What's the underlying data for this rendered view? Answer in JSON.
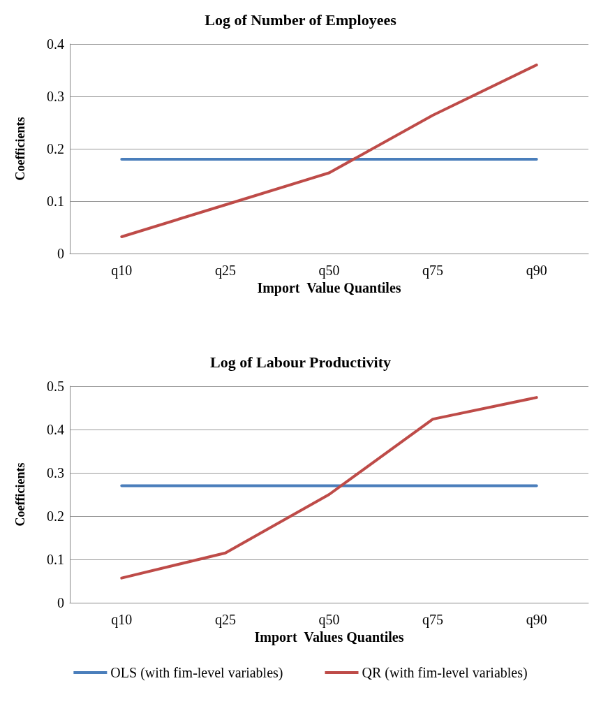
{
  "chart_data": [
    {
      "type": "line",
      "title": "Log of Number of Employees",
      "xlabel": "Import  Value Quantiles",
      "ylabel": "Coefficients",
      "categories": [
        "q10",
        "q25",
        "q50",
        "q75",
        "q90"
      ],
      "ylim": [
        0,
        0.4
      ],
      "yticks": [
        0,
        0.1,
        0.2,
        0.3,
        0.4
      ],
      "grid": "y",
      "legend": false,
      "marker": "none",
      "series": [
        {
          "color": "#4a7ebb",
          "values": [
            0.18,
            0.18,
            0.18,
            0.18,
            0.18
          ]
        },
        {
          "color": "#be4b48",
          "values": [
            0.032,
            0.093,
            0.154,
            0.264,
            0.36
          ]
        }
      ]
    },
    {
      "type": "line",
      "title": "Log of Labour Productivity",
      "xlabel": "Import  Values Quantiles",
      "ylabel": "Coefficients",
      "categories": [
        "q10",
        "q25",
        "q50",
        "q75",
        "q90"
      ],
      "ylim": [
        0,
        0.5
      ],
      "yticks": [
        0,
        0.1,
        0.2,
        0.3,
        0.4,
        0.5
      ],
      "grid": "y",
      "legend": "bottom",
      "marker": "none",
      "series": [
        {
          "name": "OLS (with fim-level variables)",
          "color": "#4a7ebb",
          "values": [
            0.27,
            0.27,
            0.27,
            0.27,
            0.27
          ]
        },
        {
          "name": "QR (with fim-level variables)",
          "color": "#be4b48",
          "values": [
            0.057,
            0.115,
            0.25,
            0.424,
            0.474
          ]
        }
      ]
    }
  ]
}
